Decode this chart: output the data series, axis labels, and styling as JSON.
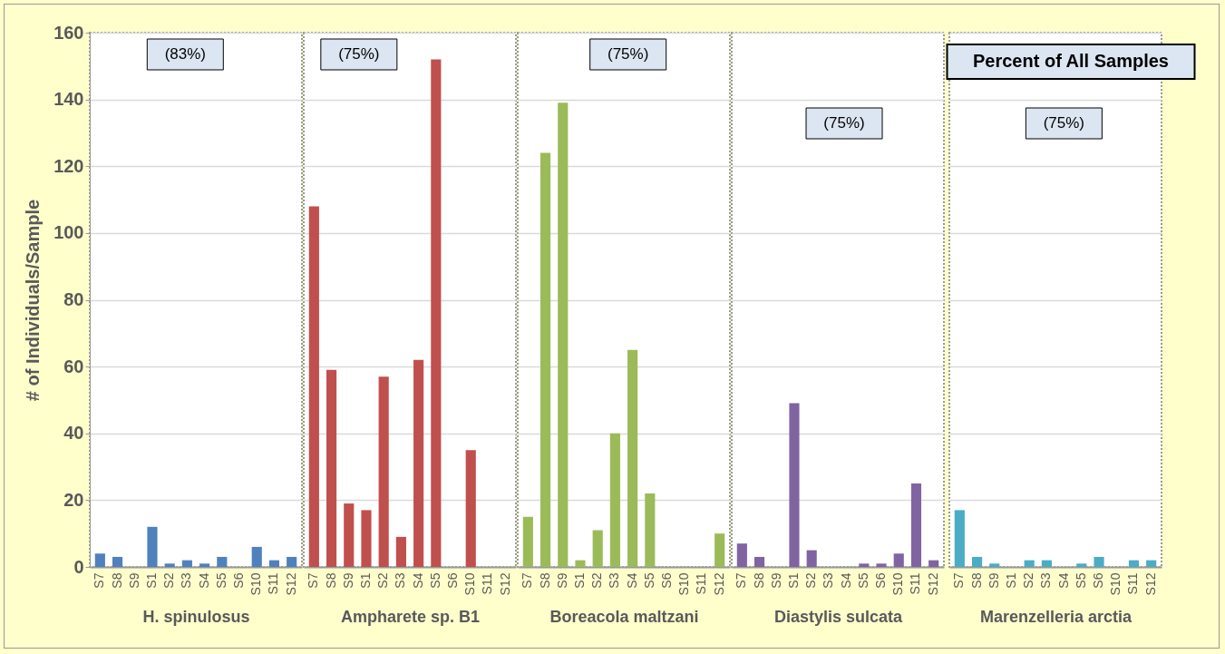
{
  "chart_data": [
    {
      "type": "bar",
      "categories": [
        "S7",
        "S8",
        "S9",
        "S1",
        "S2",
        "S3",
        "S4",
        "S5",
        "S6",
        "S10",
        "S11",
        "S12"
      ],
      "values": [
        4,
        3,
        0,
        12,
        1,
        2,
        1,
        3,
        0,
        6,
        2,
        3
      ],
      "color": "#4f81bd",
      "xlabel": "H. spinulosus",
      "ylabel": "# of Individuals/Sample",
      "ylim": [
        0,
        160
      ],
      "yticks": [
        0,
        20,
        40,
        60,
        80,
        100,
        120,
        140,
        160
      ],
      "grid": "y",
      "annotations": [
        "(83%)"
      ]
    },
    {
      "type": "bar",
      "categories": [
        "S7",
        "S8",
        "S9",
        "S1",
        "S2",
        "S3",
        "S4",
        "S5",
        "S6",
        "S10",
        "S11",
        "S12"
      ],
      "values": [
        108,
        59,
        19,
        17,
        57,
        9,
        62,
        152,
        0,
        35,
        0,
        0
      ],
      "color": "#c0504d",
      "xlabel": "Ampharete sp. B1",
      "ylim": [
        0,
        160
      ],
      "grid": "y",
      "tick_labels": "x",
      "annotations": [
        "(75%)"
      ]
    },
    {
      "type": "bar",
      "categories": [
        "S7",
        "S8",
        "S9",
        "S1",
        "S2",
        "S3",
        "S4",
        "S5",
        "S6",
        "S10",
        "S11",
        "S12"
      ],
      "values": [
        15,
        124,
        139,
        2,
        11,
        40,
        65,
        22,
        0,
        0,
        0,
        10
      ],
      "color": "#9bbb59",
      "xlabel": "Boreacola maltzani",
      "ylim": [
        0,
        160
      ],
      "grid": "y",
      "tick_labels": "x",
      "annotations": [
        "(75%)"
      ]
    },
    {
      "type": "bar",
      "categories": [
        "S7",
        "S8",
        "S9",
        "S1",
        "S2",
        "S3",
        "S4",
        "S5",
        "S6",
        "S10",
        "S11",
        "S12"
      ],
      "values": [
        7,
        3,
        0,
        49,
        5,
        0,
        0,
        1,
        1,
        4,
        25,
        2
      ],
      "color": "#8064a2",
      "xlabel": "Diastylis sulcata",
      "ylim": [
        0,
        160
      ],
      "grid": "y",
      "tick_labels": "x",
      "annotations": [
        "(75%)"
      ]
    },
    {
      "type": "bar",
      "categories": [
        "S7",
        "S8",
        "S9",
        "S1",
        "S2",
        "S3",
        "S4",
        "S5",
        "S6",
        "S10",
        "S11",
        "S12"
      ],
      "values": [
        17,
        3,
        1,
        0,
        2,
        2,
        0,
        1,
        3,
        0,
        2,
        2
      ],
      "color": "#4bacc6",
      "xlabel": "Marenzelleria arctia",
      "ylim": [
        0,
        160
      ],
      "grid": "y",
      "tick_labels": "x",
      "annotations": [
        "(75%)",
        "Percent of All Samples"
      ]
    }
  ]
}
